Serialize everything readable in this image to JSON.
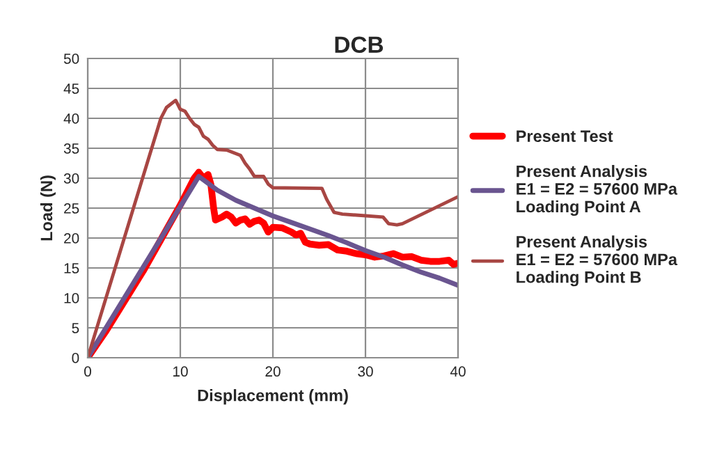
{
  "chart_data": {
    "type": "line",
    "title": "DCB",
    "xlabel": "Displacement (mm)",
    "ylabel": "Load (N)",
    "xlim": [
      0,
      40
    ],
    "ylim": [
      0,
      50
    ],
    "xticks": [
      0,
      10,
      20,
      30,
      40
    ],
    "yticks": [
      0,
      5,
      10,
      15,
      20,
      25,
      30,
      35,
      40,
      45,
      50
    ],
    "grid": true,
    "legend": "right",
    "marker": "none",
    "line_style": "solid",
    "series": [
      {
        "name": "Present Test",
        "color": "#ff0000",
        "x": [
          0,
          2,
          4,
          6,
          8,
          10,
          11.5,
          12,
          12.5,
          13,
          13.3,
          13.6,
          13.8,
          14.5,
          15,
          15.5,
          16,
          16.5,
          17,
          17.5,
          18,
          18.5,
          19,
          19.5,
          20,
          21,
          22,
          22.5,
          23,
          23.5,
          24,
          25,
          26,
          27,
          28,
          29,
          30,
          31,
          32,
          33,
          34,
          35,
          36,
          37,
          38,
          39,
          39.5,
          40
        ],
        "values": [
          0,
          4.5,
          9.5,
          14.5,
          20,
          25.5,
          30,
          31,
          30,
          30.6,
          29,
          25,
          23,
          23.5,
          24,
          23.5,
          22.5,
          23,
          23.2,
          22.3,
          22.8,
          23,
          22.5,
          21,
          21.8,
          21.7,
          21,
          20.5,
          20.8,
          19.3,
          19,
          18.8,
          18.9,
          18,
          17.8,
          17.4,
          17.2,
          16.8,
          17,
          17.4,
          16.8,
          16.9,
          16.3,
          16.1,
          16.1,
          16.3,
          15.6,
          15.8
        ]
      },
      {
        "name": "Present Analysis\nE1 = E2 = 57600 MPa\nLoading Point A",
        "color": "#6a5590",
        "x": [
          0,
          12,
          14,
          16,
          18,
          20,
          22,
          24,
          26,
          28,
          30,
          32,
          34,
          36,
          38,
          40
        ],
        "values": [
          0,
          30.3,
          28,
          26.3,
          25,
          23.7,
          22.6,
          21.5,
          20.4,
          19.2,
          17.9,
          16.8,
          15.5,
          14.3,
          13.3,
          12.1
        ]
      },
      {
        "name": "Present Analysis\nE1 = E2 = 57600 MPa\nLoading Point B",
        "color": "#a84643",
        "x": [
          0,
          7.9,
          8.5,
          9.5,
          10,
          10.5,
          11,
          11.5,
          12,
          12.5,
          13,
          13.5,
          14,
          15,
          16.5,
          17,
          17.5,
          18,
          19,
          19.5,
          20,
          25.3,
          25.8,
          26.6,
          27.5,
          31.9,
          32.5,
          33.4,
          34,
          40
        ],
        "values": [
          0,
          40,
          41.8,
          43,
          41.5,
          41.2,
          40,
          39,
          38.5,
          37,
          36.5,
          35.5,
          34.8,
          34.7,
          33.8,
          32.5,
          31.5,
          30.3,
          30.3,
          29,
          28.4,
          28.3,
          26.5,
          24.3,
          24,
          23.5,
          22.4,
          22.2,
          22.4,
          26.9
        ]
      }
    ]
  }
}
